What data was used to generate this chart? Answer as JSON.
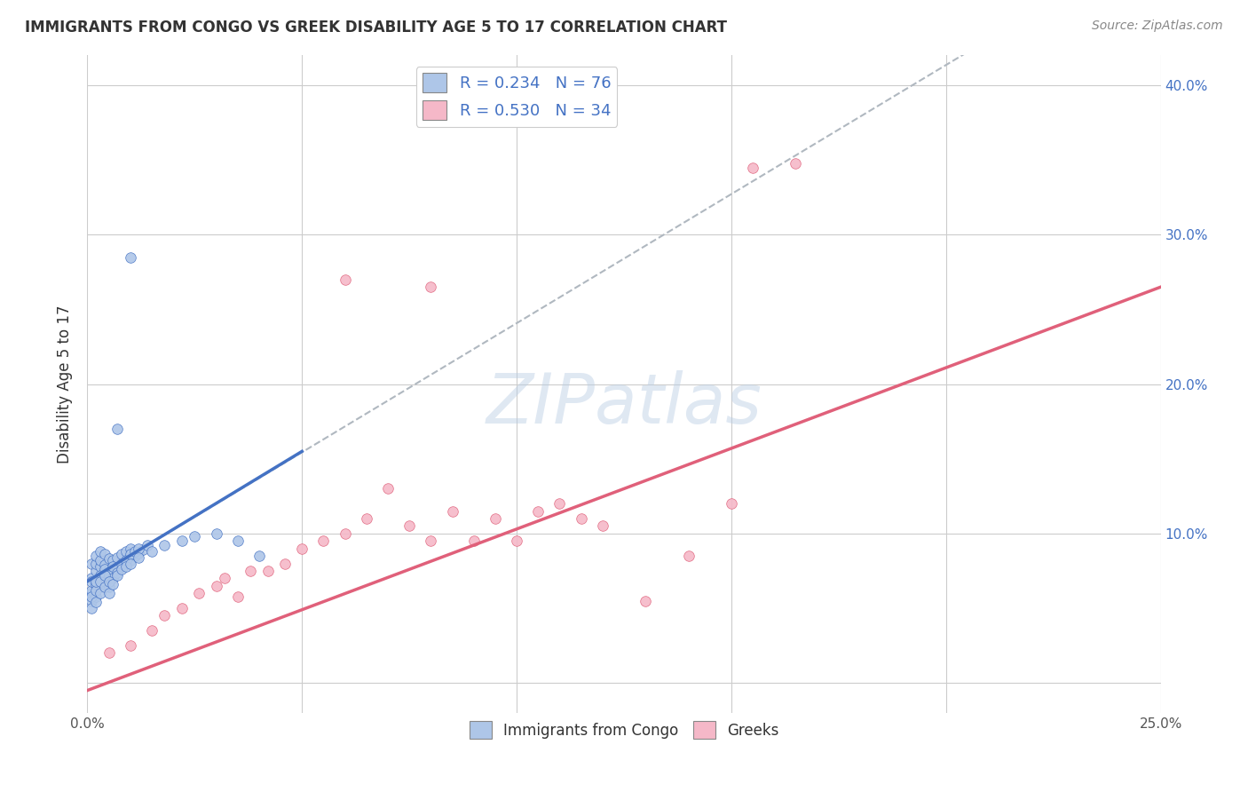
{
  "title": "IMMIGRANTS FROM CONGO VS GREEK DISABILITY AGE 5 TO 17 CORRELATION CHART",
  "source": "Source: ZipAtlas.com",
  "ylabel": "Disability Age 5 to 17",
  "xlim": [
    0.0,
    0.25
  ],
  "ylim": [
    -0.02,
    0.42
  ],
  "grid_color": "#cccccc",
  "background_color": "#ffffff",
  "watermark": "ZIPatlas",
  "series1_label": "Immigrants from Congo",
  "series2_label": "Greeks",
  "series1_color": "#aec6e8",
  "series2_color": "#f5b8c8",
  "line1_color": "#4472c4",
  "line2_color": "#e0607a",
  "dashed_line_color": "#b0b8c0",
  "congo_x": [
    0.001,
    0.001,
    0.001,
    0.002,
    0.002,
    0.002,
    0.002,
    0.003,
    0.003,
    0.003,
    0.003,
    0.004,
    0.004,
    0.004,
    0.005,
    0.005,
    0.005,
    0.006,
    0.006,
    0.007,
    0.007,
    0.008,
    0.008,
    0.009,
    0.009,
    0.01,
    0.01,
    0.011,
    0.012,
    0.013,
    0.001,
    0.001,
    0.001,
    0.002,
    0.002,
    0.003,
    0.003,
    0.004,
    0.004,
    0.005,
    0.005,
    0.006,
    0.006,
    0.007,
    0.008,
    0.009,
    0.01,
    0.011,
    0.012,
    0.014,
    0.001,
    0.001,
    0.002,
    0.002,
    0.002,
    0.003,
    0.003,
    0.004,
    0.004,
    0.005,
    0.005,
    0.006,
    0.007,
    0.008,
    0.009,
    0.01,
    0.012,
    0.015,
    0.018,
    0.022,
    0.025,
    0.03,
    0.035,
    0.04,
    0.01,
    0.007
  ],
  "congo_y": [
    0.06,
    0.07,
    0.08,
    0.065,
    0.075,
    0.08,
    0.085,
    0.07,
    0.078,
    0.082,
    0.088,
    0.072,
    0.079,
    0.086,
    0.068,
    0.076,
    0.083,
    0.074,
    0.082,
    0.076,
    0.084,
    0.078,
    0.086,
    0.08,
    0.088,
    0.082,
    0.09,
    0.085,
    0.087,
    0.089,
    0.055,
    0.062,
    0.068,
    0.058,
    0.066,
    0.064,
    0.072,
    0.068,
    0.076,
    0.064,
    0.072,
    0.07,
    0.078,
    0.074,
    0.08,
    0.082,
    0.086,
    0.088,
    0.09,
    0.092,
    0.05,
    0.058,
    0.054,
    0.062,
    0.068,
    0.06,
    0.068,
    0.064,
    0.072,
    0.06,
    0.068,
    0.066,
    0.072,
    0.076,
    0.078,
    0.08,
    0.084,
    0.088,
    0.092,
    0.095,
    0.098,
    0.1,
    0.095,
    0.085,
    0.285,
    0.17
  ],
  "greek_x": [
    0.005,
    0.01,
    0.015,
    0.018,
    0.022,
    0.026,
    0.03,
    0.032,
    0.035,
    0.038,
    0.042,
    0.046,
    0.05,
    0.055,
    0.06,
    0.065,
    0.07,
    0.075,
    0.08,
    0.085,
    0.09,
    0.095,
    0.1,
    0.105,
    0.11,
    0.115,
    0.12,
    0.13,
    0.14,
    0.15,
    0.155,
    0.165,
    0.06,
    0.08
  ],
  "greek_y": [
    0.02,
    0.025,
    0.035,
    0.045,
    0.05,
    0.06,
    0.065,
    0.07,
    0.058,
    0.075,
    0.075,
    0.08,
    0.09,
    0.095,
    0.1,
    0.11,
    0.13,
    0.105,
    0.095,
    0.115,
    0.095,
    0.11,
    0.095,
    0.115,
    0.12,
    0.11,
    0.105,
    0.055,
    0.085,
    0.12,
    0.345,
    0.348,
    0.27,
    0.265
  ],
  "congo_line_x": [
    0.0,
    0.05
  ],
  "congo_line_y": [
    0.068,
    0.155
  ],
  "greek_line_x": [
    0.0,
    0.25
  ],
  "greek_line_y": [
    -0.005,
    0.265
  ],
  "dashed_line_x": [
    0.0,
    0.25
  ],
  "dashed_line_y": [
    0.068,
    0.5
  ]
}
